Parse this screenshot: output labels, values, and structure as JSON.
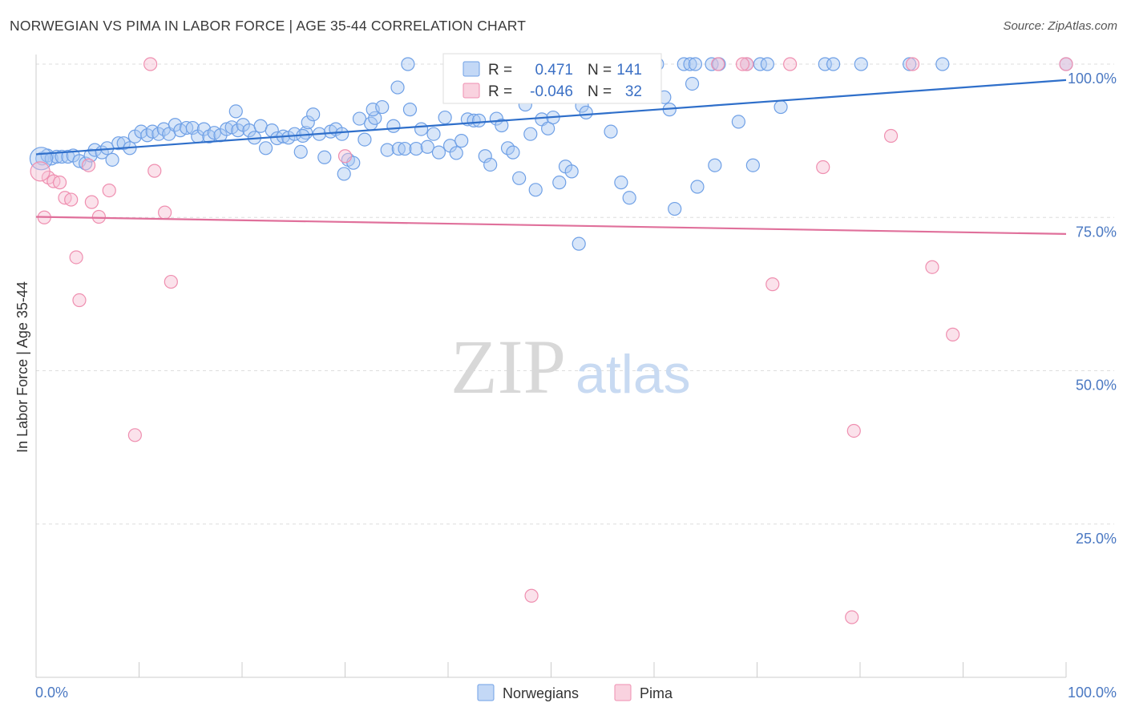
{
  "title": "NORWEGIAN VS PIMA IN LABOR FORCE | AGE 35-44 CORRELATION CHART",
  "source": "Source: ZipAtlas.com",
  "watermark": {
    "zip": "ZIP",
    "atlas": "atlas"
  },
  "colors": {
    "norwegians": "#6fa0e6",
    "norwegians_fill": "#a9c8f2",
    "pima": "#ef8fb0",
    "pima_fill": "#f6bfd2",
    "trend_norwegians": "#2f6fca",
    "trend_pima": "#e0709b",
    "tick_text": "#4a78c2",
    "grid": "#dddddd"
  },
  "stats": {
    "norwegians": {
      "r_label": "R =",
      "r_value": "0.471",
      "n_label": "N =",
      "n_value": "141"
    },
    "pima": {
      "r_label": "R =",
      "r_value": "-0.046",
      "n_label": "N =",
      "n_value": "32"
    }
  },
  "chart_data": {
    "type": "scatter",
    "title": "NORWEGIAN VS PIMA IN LABOR FORCE | AGE 35-44 CORRELATION CHART",
    "xlabel": "",
    "ylabel": "In Labor Force | Age 35-44",
    "xlim": [
      0,
      100
    ],
    "ylim": [
      0,
      102
    ],
    "x_tick_labels": [
      "0.0%",
      "100.0%"
    ],
    "y_ticks": [
      {
        "value": 25,
        "label": "25.0%"
      },
      {
        "value": 50,
        "label": "50.0%"
      },
      {
        "value": 75,
        "label": "75.0%"
      },
      {
        "value": 100,
        "label": "100.0%"
      }
    ],
    "grid": true,
    "legend_position": "bottom-center",
    "series": [
      {
        "name": "Norwegians",
        "trend": [
          [
            0,
            85.3
          ],
          [
            100,
            97.4
          ]
        ],
        "points": [
          [
            0.6,
            84.6
          ],
          [
            1.1,
            85.1
          ],
          [
            1.5,
            84.6
          ],
          [
            2.0,
            84.9
          ],
          [
            2.5,
            84.9
          ],
          [
            3.1,
            84.9
          ],
          [
            3.6,
            85.1
          ],
          [
            4.2,
            84.2
          ],
          [
            4.8,
            83.8
          ],
          [
            5.3,
            85.1
          ],
          [
            5.7,
            86.0
          ],
          [
            6.4,
            85.6
          ],
          [
            6.9,
            86.3
          ],
          [
            7.4,
            84.4
          ],
          [
            8.0,
            87.1
          ],
          [
            8.5,
            87.1
          ],
          [
            9.1,
            86.3
          ],
          [
            9.6,
            88.2
          ],
          [
            10.2,
            89.0
          ],
          [
            10.8,
            88.4
          ],
          [
            11.3,
            89.0
          ],
          [
            11.9,
            88.6
          ],
          [
            12.4,
            89.4
          ],
          [
            12.9,
            88.6
          ],
          [
            13.5,
            90.1
          ],
          [
            14.0,
            89.2
          ],
          [
            14.6,
            89.6
          ],
          [
            15.2,
            89.6
          ],
          [
            15.7,
            88.2
          ],
          [
            16.3,
            89.4
          ],
          [
            16.8,
            88.2
          ],
          [
            17.3,
            88.8
          ],
          [
            17.9,
            88.4
          ],
          [
            18.5,
            89.4
          ],
          [
            19.0,
            89.7
          ],
          [
            19.6,
            89.2
          ],
          [
            20.1,
            90.1
          ],
          [
            20.7,
            89.2
          ],
          [
            21.2,
            88.0
          ],
          [
            21.8,
            89.9
          ],
          [
            22.3,
            86.3
          ],
          [
            22.9,
            89.2
          ],
          [
            23.4,
            87.9
          ],
          [
            24.0,
            88.2
          ],
          [
            24.5,
            88.0
          ],
          [
            25.1,
            88.6
          ],
          [
            25.7,
            85.7
          ],
          [
            26.2,
            88.8
          ],
          [
            26.4,
            90.5
          ],
          [
            26.9,
            91.8
          ],
          [
            27.5,
            88.6
          ],
          [
            28.0,
            84.8
          ],
          [
            28.6,
            89.0
          ],
          [
            29.1,
            89.4
          ],
          [
            29.7,
            88.6
          ],
          [
            29.9,
            82.1
          ],
          [
            30.3,
            84.4
          ],
          [
            30.8,
            83.9
          ],
          [
            31.4,
            91.1
          ],
          [
            31.9,
            87.7
          ],
          [
            32.5,
            90.3
          ],
          [
            32.9,
            91.2
          ],
          [
            32.7,
            92.6
          ],
          [
            33.6,
            93.0
          ],
          [
            34.1,
            86.0
          ],
          [
            34.7,
            89.9
          ],
          [
            35.2,
            86.2
          ],
          [
            35.8,
            86.2
          ],
          [
            36.3,
            92.6
          ],
          [
            36.9,
            86.2
          ],
          [
            37.4,
            89.4
          ],
          [
            38.0,
            86.5
          ],
          [
            38.6,
            88.6
          ],
          [
            39.1,
            85.6
          ],
          [
            39.7,
            91.3
          ],
          [
            40.2,
            86.7
          ],
          [
            40.8,
            85.5
          ],
          [
            41.3,
            87.5
          ],
          [
            41.9,
            91.0
          ],
          [
            42.5,
            90.8
          ],
          [
            43.0,
            90.8
          ],
          [
            43.6,
            85.0
          ],
          [
            44.1,
            83.6
          ],
          [
            44.7,
            91.1
          ],
          [
            45.2,
            90.0
          ],
          [
            45.8,
            86.3
          ],
          [
            46.3,
            85.6
          ],
          [
            46.9,
            81.4
          ],
          [
            47.5,
            93.4
          ],
          [
            48.0,
            88.6
          ],
          [
            48.5,
            79.5
          ],
          [
            49.1,
            91.0
          ],
          [
            49.7,
            89.5
          ],
          [
            50.2,
            91.3
          ],
          [
            50.8,
            80.7
          ],
          [
            51.4,
            83.3
          ],
          [
            52.0,
            82.5
          ],
          [
            53.0,
            93.2
          ],
          [
            53.4,
            92.1
          ],
          [
            54.6,
            96.4
          ],
          [
            55.8,
            89.0
          ],
          [
            56.8,
            80.7
          ],
          [
            57.6,
            78.2
          ],
          [
            61.0,
            94.6
          ],
          [
            61.5,
            92.6
          ],
          [
            62.0,
            76.4
          ],
          [
            64.2,
            80.0
          ],
          [
            65.9,
            83.5
          ],
          [
            68.2,
            90.6
          ],
          [
            69.6,
            83.5
          ],
          [
            72.3,
            93.0
          ],
          [
            36.1,
            100
          ],
          [
            41.4,
            100
          ],
          [
            51.5,
            100
          ],
          [
            58.0,
            100
          ],
          [
            58.6,
            100
          ],
          [
            59.1,
            100
          ],
          [
            59.7,
            100
          ],
          [
            60.3,
            100
          ],
          [
            62.9,
            100
          ],
          [
            63.5,
            100
          ],
          [
            64.0,
            100
          ],
          [
            65.6,
            100
          ],
          [
            66.3,
            100
          ],
          [
            69.0,
            100
          ],
          [
            70.3,
            100
          ],
          [
            71.0,
            100
          ],
          [
            76.6,
            100
          ],
          [
            77.4,
            100
          ],
          [
            80.1,
            100
          ],
          [
            84.8,
            100
          ],
          [
            88.0,
            100
          ],
          [
            49.4,
            96.9
          ],
          [
            52.7,
            70.7
          ],
          [
            55.9,
            96.8
          ],
          [
            59.8,
            96.1
          ],
          [
            100,
            100
          ],
          [
            19.4,
            92.3
          ],
          [
            35.1,
            96.2
          ],
          [
            63.7,
            96.8
          ],
          [
            25.9,
            88.3
          ]
        ]
      },
      {
        "name": "Pima",
        "trend": [
          [
            0,
            75.1
          ],
          [
            100,
            72.3
          ]
        ],
        "points": [
          [
            0.8,
            75.0
          ],
          [
            1.2,
            81.5
          ],
          [
            1.7,
            80.9
          ],
          [
            2.3,
            80.7
          ],
          [
            2.8,
            78.2
          ],
          [
            3.4,
            77.9
          ],
          [
            3.9,
            68.5
          ],
          [
            4.2,
            61.5
          ],
          [
            5.4,
            77.5
          ],
          [
            5.1,
            83.5
          ],
          [
            6.1,
            75.1
          ],
          [
            7.1,
            79.4
          ],
          [
            9.6,
            39.5
          ],
          [
            11.1,
            100
          ],
          [
            11.5,
            82.6
          ],
          [
            12.5,
            75.8
          ],
          [
            13.1,
            64.5
          ],
          [
            30.0,
            85.0
          ],
          [
            48.1,
            13.3
          ],
          [
            66.2,
            100
          ],
          [
            69.0,
            100
          ],
          [
            71.5,
            64.1
          ],
          [
            73.2,
            100
          ],
          [
            76.4,
            83.2
          ],
          [
            79.2,
            9.8
          ],
          [
            79.4,
            40.2
          ],
          [
            83.0,
            88.3
          ],
          [
            85.1,
            100
          ],
          [
            87.0,
            66.9
          ],
          [
            89.0,
            55.9
          ],
          [
            100,
            100
          ],
          [
            68.6,
            100
          ]
        ]
      }
    ]
  }
}
